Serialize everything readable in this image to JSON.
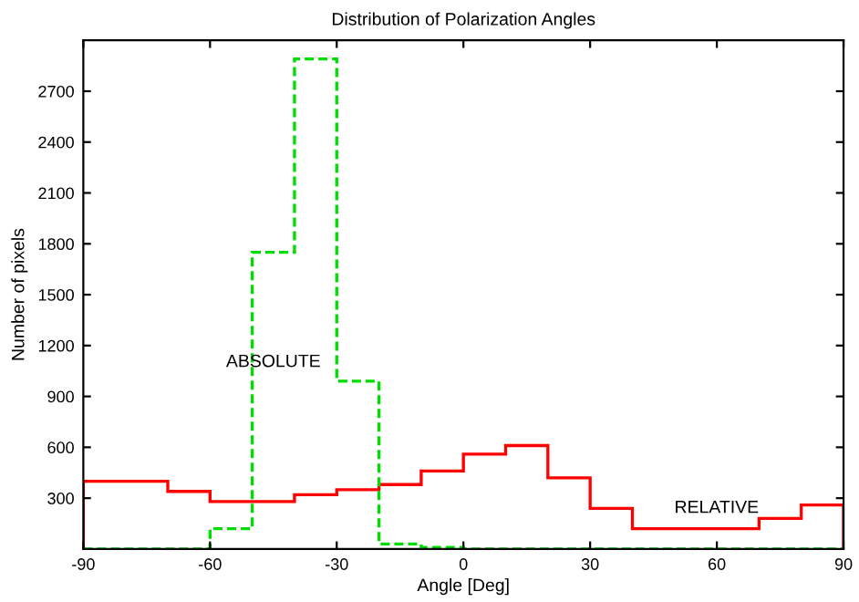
{
  "chart_data": {
    "type": "histogram",
    "title": "Distribution of Polarization Angles",
    "xlabel": "Angle [Deg]",
    "ylabel": "Number of pixels",
    "bins": [
      -90,
      -80,
      -70,
      -60,
      -50,
      -40,
      -30,
      -20,
      -10,
      0,
      10,
      20,
      30,
      40,
      50,
      60,
      70,
      80,
      90
    ],
    "series": [
      {
        "color": "#ff0000",
        "line_style": "solid",
        "values": [
          400,
          400,
          340,
          280,
          280,
          320,
          350,
          380,
          460,
          560,
          610,
          420,
          240,
          120,
          120,
          120,
          180,
          260
        ]
      },
      {
        "color": "#00dd00",
        "line_style": "dashed",
        "values": [
          0,
          0,
          0,
          120,
          1750,
          2890,
          990,
          30,
          10,
          0,
          0,
          0,
          0,
          0,
          0,
          0,
          0,
          0
        ]
      }
    ],
    "annotations": [
      "ABSOLUTE",
      "RELATIVE"
    ],
    "xlim": [
      -90,
      90
    ],
    "ylim": [
      0,
      3000
    ],
    "xticks": [
      -90,
      -60,
      -30,
      0,
      30,
      60,
      90
    ],
    "yticks": [
      300,
      600,
      900,
      1200,
      1500,
      1800,
      2100,
      2400,
      2700
    ],
    "grid": false,
    "legend": false
  }
}
